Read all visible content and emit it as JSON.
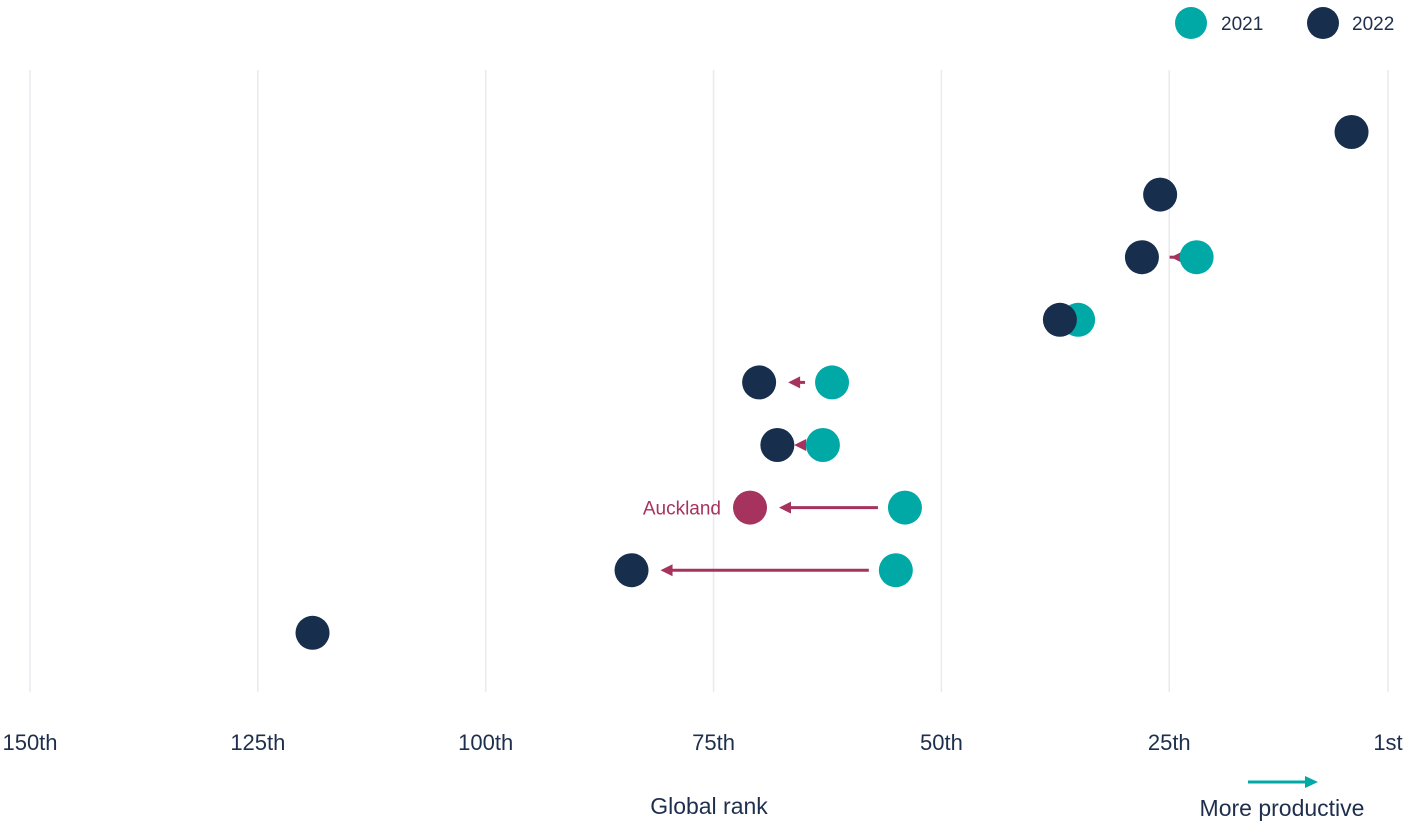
{
  "colors": {
    "y2021": "#00a9a6",
    "y2022": "#172e4d",
    "highlight": "#a6335e",
    "arrow": "#a6335e",
    "grid": "#e8eaed",
    "text": "#1e2f4d"
  },
  "legend": [
    {
      "label": "2021",
      "color": "#00a9a6"
    },
    {
      "label": "2022",
      "color": "#172e4d"
    }
  ],
  "xlabel": "Global rank",
  "direction_note": "More productive",
  "chart_data": {
    "type": "scatter",
    "subtype": "dumbbell",
    "x_axis": {
      "reversed": true,
      "range": [
        150,
        1
      ],
      "ticks": [
        150,
        125,
        100,
        75,
        50,
        25,
        1
      ],
      "tick_labels": [
        "150th",
        "125th",
        "100th",
        "75th",
        "50th",
        "25th",
        "1st"
      ],
      "grid": true
    },
    "legend_position": "top-right",
    "series": [
      {
        "name": "2021",
        "color": "#00a9a6"
      },
      {
        "name": "2022",
        "color": "#172e4d"
      }
    ],
    "rows": [
      {
        "label": "",
        "rank_2021": null,
        "rank_2022": 5
      },
      {
        "label": "",
        "rank_2021": null,
        "rank_2022": 26
      },
      {
        "label": "",
        "rank_2021": 22,
        "rank_2022": 28
      },
      {
        "label": "",
        "rank_2021": 35,
        "rank_2022": 37
      },
      {
        "label": "",
        "rank_2021": 62,
        "rank_2022": 70
      },
      {
        "label": "",
        "rank_2021": 63,
        "rank_2022": 68
      },
      {
        "label": "Auckland",
        "rank_2021": 54,
        "rank_2022": 71,
        "highlight": true
      },
      {
        "label": "",
        "rank_2021": 55,
        "rank_2022": 84
      },
      {
        "label": "",
        "rank_2021": null,
        "rank_2022": 119
      }
    ]
  }
}
